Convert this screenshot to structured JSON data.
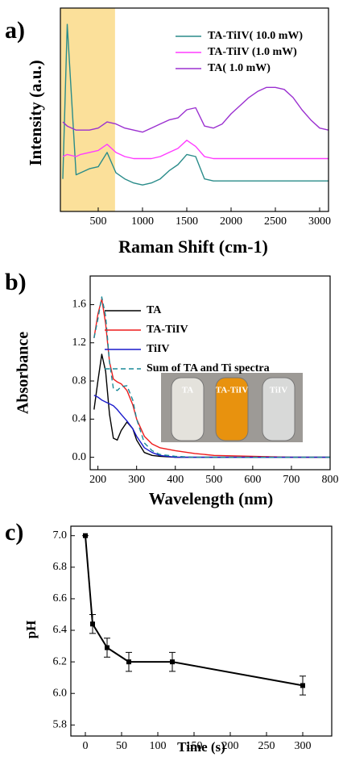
{
  "chart_data": [
    {
      "type": "line",
      "panel_label": "a)",
      "x_label": "Raman Shift (cm-1)",
      "y_label": "Intensity (a.u.)",
      "xlim": [
        73,
        3100
      ],
      "xticks": [
        500,
        1000,
        1500,
        2000,
        2500,
        3000
      ],
      "ylim": [
        0,
        10
      ],
      "highlight_x": [
        73,
        690
      ],
      "highlight_color": "#fbe09a",
      "x": [
        100,
        150,
        250,
        300,
        400,
        500,
        600,
        700,
        800,
        900,
        1000,
        1100,
        1200,
        1300,
        1400,
        1500,
        1600,
        1700,
        1800,
        1900,
        2000,
        2100,
        2200,
        2300,
        2400,
        2500,
        2600,
        2700,
        2800,
        2900,
        3000,
        3100
      ],
      "series": [
        {
          "name": "TA-TiIV( 10.0 mW)",
          "color": "#2a8c8a",
          "values": [
            1.6,
            9.2,
            1.8,
            1.9,
            2.1,
            2.2,
            2.9,
            1.9,
            1.6,
            1.4,
            1.3,
            1.4,
            1.6,
            2.0,
            2.3,
            2.8,
            2.7,
            1.6,
            1.5,
            1.5,
            1.5,
            1.5,
            1.5,
            1.5,
            1.5,
            1.5,
            1.5,
            1.5,
            1.5,
            1.5,
            1.5,
            1.5
          ]
        },
        {
          "name": "TA-TiIV (1.0 mW)",
          "color": "#ff3cff",
          "values": [
            2.7,
            2.8,
            2.7,
            2.8,
            2.9,
            3.0,
            3.3,
            2.9,
            2.7,
            2.6,
            2.6,
            2.6,
            2.7,
            2.9,
            3.1,
            3.5,
            3.2,
            2.7,
            2.6,
            2.6,
            2.6,
            2.6,
            2.6,
            2.6,
            2.6,
            2.6,
            2.6,
            2.6,
            2.6,
            2.6,
            2.6,
            2.6
          ]
        },
        {
          "name": "TA( 1.0 mW)",
          "color": "#9b30d0",
          "values": [
            4.4,
            4.2,
            4.0,
            4.0,
            4.0,
            4.1,
            4.4,
            4.3,
            4.1,
            4.0,
            3.9,
            4.1,
            4.3,
            4.5,
            4.6,
            5.0,
            5.1,
            4.2,
            4.1,
            4.3,
            4.8,
            5.2,
            5.6,
            5.9,
            6.1,
            6.1,
            6.0,
            5.6,
            5.0,
            4.5,
            4.1,
            4.0
          ]
        }
      ]
    },
    {
      "type": "line",
      "panel_label": "b)",
      "x_label": "Wavelength (nm)",
      "y_label": "Absorbance",
      "xlim": [
        180,
        800
      ],
      "xticks": [
        200,
        300,
        400,
        500,
        600,
        700,
        800
      ],
      "ylim": [
        -0.13,
        1.9
      ],
      "yticks": [
        {
          "value": 0,
          "label": "0.0"
        },
        {
          "value": 0.4,
          "label": "0.4"
        },
        {
          "value": 0.8,
          "label": "0.8"
        },
        {
          "value": 1.2,
          "label": "1.2"
        },
        {
          "value": 1.6,
          "label": "1.6"
        }
      ],
      "inset_labels": [
        "TA",
        "TA-TiIV",
        "TiIV"
      ],
      "x": [
        190,
        200,
        210,
        220,
        230,
        240,
        250,
        260,
        275,
        290,
        300,
        320,
        340,
        360,
        400,
        450,
        500,
        600,
        700,
        800
      ],
      "series": [
        {
          "name": "TA",
          "color": "#000000",
          "values": [
            0.5,
            0.8,
            1.08,
            0.9,
            0.45,
            0.2,
            0.18,
            0.28,
            0.37,
            0.3,
            0.18,
            0.05,
            0.02,
            0.01,
            0,
            0,
            0,
            0,
            0,
            0
          ]
        },
        {
          "name": "TA-TiIV",
          "color": "#ee1c1c",
          "values": [
            1.25,
            1.5,
            1.66,
            1.4,
            1.0,
            0.82,
            0.79,
            0.77,
            0.7,
            0.55,
            0.4,
            0.22,
            0.14,
            0.1,
            0.07,
            0.04,
            0.02,
            0.01,
            0,
            0
          ]
        },
        {
          "name": "TiIV",
          "color": "#1a1acc",
          "values": [
            0.65,
            0.63,
            0.6,
            0.58,
            0.56,
            0.54,
            0.5,
            0.45,
            0.38,
            0.3,
            0.22,
            0.1,
            0.05,
            0.02,
            0,
            0,
            0,
            0,
            0,
            0
          ]
        },
        {
          "name": "Sum of TA and Ti spectra",
          "color": "#1a8a99",
          "dashed": true,
          "values": [
            1.25,
            1.45,
            1.68,
            1.48,
            1.0,
            0.72,
            0.7,
            0.74,
            0.75,
            0.6,
            0.4,
            0.15,
            0.07,
            0.03,
            0.01,
            0,
            0,
            0,
            0,
            0
          ]
        }
      ]
    },
    {
      "type": "line",
      "panel_label": "c)",
      "x_label": "Time (s)",
      "y_label": "pH",
      "markers": true,
      "xlim": [
        -20,
        340
      ],
      "xticks": [
        0,
        50,
        100,
        150,
        200,
        250,
        300
      ],
      "ylim": [
        5.73,
        7.06
      ],
      "yticks": [
        {
          "value": 5.8,
          "label": "5.8"
        },
        {
          "value": 6.0,
          "label": "6.0"
        },
        {
          "value": 6.2,
          "label": "6.2"
        },
        {
          "value": 6.4,
          "label": "6.4"
        },
        {
          "value": 6.6,
          "label": "6.6"
        },
        {
          "value": 6.8,
          "label": "6.8"
        },
        {
          "value": 7.0,
          "label": "7.0"
        }
      ],
      "color": "#000000",
      "x": [
        0,
        10,
        30,
        60,
        120,
        300
      ],
      "values": [
        7.0,
        6.44,
        6.29,
        6.2,
        6.2,
        6.05
      ],
      "errors": [
        0,
        0.06,
        0.06,
        0.06,
        0.06,
        0.06
      ]
    }
  ]
}
